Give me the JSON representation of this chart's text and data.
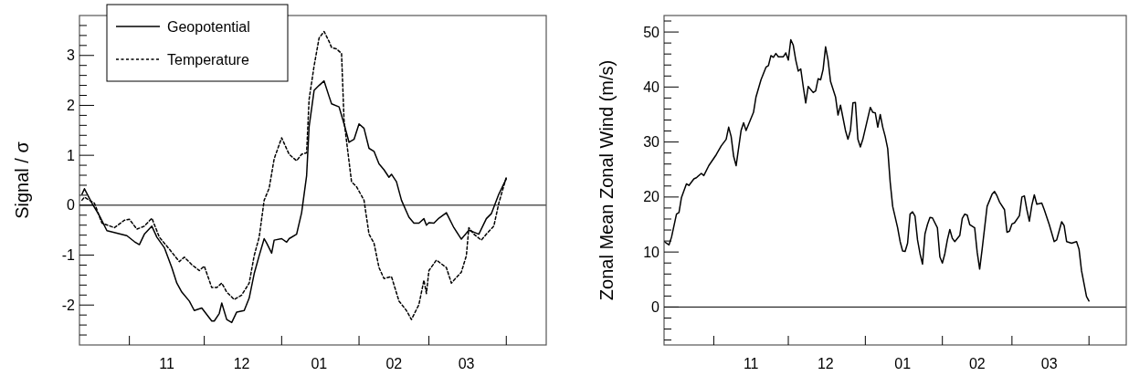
{
  "chart_data": [
    {
      "type": "line",
      "ylabel": "Signal / σ",
      "xlim": [
        "2000-10-12",
        "2001-04-17"
      ],
      "ylim": [
        -2.8,
        3.8
      ],
      "xticks": [
        {
          "value": "2000-11-01",
          "label": null
        },
        {
          "value": "2000-12-01",
          "label": null
        },
        {
          "value": "2001-01-01",
          "label": null
        },
        {
          "value": "2001-02-01",
          "label": null
        },
        {
          "value": "2001-03-01",
          "label": null
        },
        {
          "value": "2001-04-01",
          "label": null
        },
        {
          "value": "2000-11-16",
          "label": "11"
        },
        {
          "value": "2000-12-16",
          "label": "12"
        },
        {
          "value": "2001-01-16",
          "label": "01"
        },
        {
          "value": "2001-02-15",
          "label": "02"
        },
        {
          "value": "2001-03-16",
          "label": "03"
        }
      ],
      "yticks": [
        -2,
        -1,
        0,
        1,
        2,
        3,
        {
          "value": -2.6,
          "label": null
        },
        {
          "value": -2.4,
          "label": null
        },
        {
          "value": -2.2,
          "label": null
        },
        {
          "value": -1.8,
          "label": null
        },
        {
          "value": -1.6,
          "label": null
        },
        {
          "value": -1.4,
          "label": null
        },
        {
          "value": -1.2,
          "label": null
        },
        {
          "value": -0.8,
          "label": null
        },
        {
          "value": -0.6,
          "label": null
        },
        {
          "value": -0.4,
          "label": null
        },
        {
          "value": -0.2,
          "label": null
        },
        {
          "value": 0.2,
          "label": null
        },
        {
          "value": 0.4,
          "label": null
        },
        {
          "value": 0.6,
          "label": null
        },
        {
          "value": 0.8,
          "label": null
        },
        {
          "value": 1.2,
          "label": null
        },
        {
          "value": 1.4,
          "label": null
        },
        {
          "value": 1.6,
          "label": null
        },
        {
          "value": 1.8,
          "label": null
        },
        {
          "value": 2.2,
          "label": null
        },
        {
          "value": 2.4,
          "label": null
        },
        {
          "value": 2.6,
          "label": null
        },
        {
          "value": 2.8,
          "label": null
        },
        {
          "value": 3.2,
          "label": null
        },
        {
          "value": 3.4,
          "label": null
        },
        {
          "value": 3.6,
          "label": null
        }
      ],
      "grid": false,
      "legend": "top left",
      "marker": "none",
      "ref_lines": [
        {
          "axis": "y",
          "value": 0,
          "label": null,
          "color": "#000000"
        }
      ],
      "series": [
        {
          "name": "Geopotential",
          "color": "#000000",
          "line_style": "solid",
          "x": [
            "2000-10-13",
            "2000-10-14",
            "2000-10-17",
            "2000-10-20",
            "2000-10-23",
            "2000-10-27",
            "2000-10-31",
            "2000-11-03",
            "2000-11-05",
            "2000-11-07",
            "2000-11-10",
            "2000-11-12",
            "2000-11-15",
            "2000-11-18",
            "2000-11-20",
            "2000-11-22",
            "2000-11-25",
            "2000-11-27",
            "2000-11-30",
            "2000-12-04",
            "2000-12-05",
            "2000-12-07",
            "2000-12-08",
            "2000-12-10",
            "2000-12-12",
            "2000-12-14",
            "2000-12-17",
            "2000-12-19",
            "2000-12-21",
            "2000-12-23",
            "2000-12-25",
            "2000-12-26",
            "2000-12-28",
            "2000-12-29",
            "2001-01-01",
            "2001-01-03",
            "2001-01-04",
            "2001-01-07",
            "2001-01-09",
            "2001-01-11",
            "2001-01-12",
            "2001-01-14",
            "2001-01-16",
            "2001-01-18",
            "2001-01-20",
            "2001-01-21",
            "2001-01-24",
            "2001-01-26",
            "2001-01-28",
            "2001-01-30",
            "2001-02-01",
            "2001-02-03",
            "2001-02-05",
            "2001-02-07",
            "2001-02-09",
            "2001-02-11",
            "2001-02-13",
            "2001-02-14",
            "2001-02-16",
            "2001-02-18",
            "2001-02-21",
            "2001-02-23",
            "2001-02-25",
            "2001-02-27",
            "2001-02-28",
            "2001-03-01",
            "2001-03-03",
            "2001-03-05",
            "2001-03-08",
            "2001-03-11",
            "2001-03-14",
            "2001-03-17",
            "2001-03-21",
            "2001-03-24",
            "2001-03-26",
            "2001-03-29",
            "2001-04-01"
          ],
          "values": [
            0.22,
            0.33,
            0.04,
            -0.21,
            -0.51,
            -0.56,
            -0.61,
            -0.73,
            -0.79,
            -0.58,
            -0.42,
            -0.64,
            -0.85,
            -1.25,
            -1.56,
            -1.74,
            -1.92,
            -2.11,
            -2.06,
            -2.32,
            -2.32,
            -2.17,
            -1.96,
            -2.29,
            -2.35,
            -2.14,
            -2.11,
            -1.86,
            -1.37,
            -1.01,
            -0.67,
            -0.76,
            -0.96,
            -0.7,
            -0.67,
            -0.74,
            -0.67,
            -0.58,
            -0.15,
            0.59,
            1.57,
            2.3,
            2.4,
            2.49,
            2.18,
            2.03,
            1.97,
            1.63,
            1.26,
            1.32,
            1.63,
            1.54,
            1.14,
            1.08,
            0.83,
            0.71,
            0.56,
            0.62,
            0.47,
            0.1,
            -0.24,
            -0.36,
            -0.36,
            -0.27,
            -0.4,
            -0.35,
            -0.36,
            -0.26,
            -0.15,
            -0.45,
            -0.68,
            -0.5,
            -0.58,
            -0.27,
            -0.17,
            0.22,
            0.53
          ]
        },
        {
          "name": "Temperature",
          "color": "#000000",
          "line_style": "dashed",
          "x": [
            "2000-10-13",
            "2000-10-14",
            "2000-10-18",
            "2000-10-21",
            "2000-10-26",
            "2000-10-30",
            "2000-11-01",
            "2000-11-04",
            "2000-11-07",
            "2000-11-10",
            "2000-11-13",
            "2000-11-17",
            "2000-11-21",
            "2000-11-23",
            "2000-11-26",
            "2000-11-29",
            "2000-12-01",
            "2000-12-04",
            "2000-12-06",
            "2000-12-08",
            "2000-12-10",
            "2000-12-13",
            "2000-12-16",
            "2000-12-19",
            "2000-12-21",
            "2000-12-23",
            "2000-12-25",
            "2000-12-27",
            "2000-12-29",
            "2001-01-01",
            "2001-01-04",
            "2001-01-07",
            "2001-01-09",
            "2001-01-11",
            "2001-01-12",
            "2001-01-14",
            "2001-01-16",
            "2001-01-18",
            "2001-01-20",
            "2001-01-21",
            "2001-01-23",
            "2001-01-25",
            "2001-01-26",
            "2001-01-29",
            "2001-01-31",
            "2001-02-03",
            "2001-02-05",
            "2001-02-07",
            "2001-02-09",
            "2001-02-11",
            "2001-02-14",
            "2001-02-17",
            "2001-02-20",
            "2001-02-22",
            "2001-02-25",
            "2001-02-27",
            "2001-02-28",
            "2001-03-01",
            "2001-03-04",
            "2001-03-08",
            "2001-03-10",
            "2001-03-14",
            "2001-03-16",
            "2001-03-17",
            "2001-03-19",
            "2001-03-22",
            "2001-03-24",
            "2001-03-27",
            "2001-03-29",
            "2001-04-01"
          ],
          "values": [
            0.1,
            0.16,
            0.04,
            -0.36,
            -0.45,
            -0.3,
            -0.28,
            -0.48,
            -0.42,
            -0.26,
            -0.64,
            -0.88,
            -1.13,
            -1.04,
            -1.19,
            -1.31,
            -1.22,
            -1.65,
            -1.65,
            -1.56,
            -1.74,
            -1.89,
            -1.8,
            -1.56,
            -1.01,
            -0.64,
            0.1,
            0.34,
            0.93,
            1.35,
            1.02,
            0.89,
            1.02,
            1.05,
            2.12,
            2.79,
            3.35,
            3.48,
            3.28,
            3.16,
            3.13,
            3.04,
            1.69,
            0.47,
            0.37,
            0.1,
            -0.58,
            -0.76,
            -1.25,
            -1.47,
            -1.43,
            -1.92,
            -2.11,
            -2.29,
            -1.99,
            -1.5,
            -1.77,
            -1.31,
            -1.1,
            -1.25,
            -1.56,
            -1.34,
            -1.01,
            -0.45,
            -0.58,
            -0.7,
            -0.58,
            -0.42,
            0.04,
            0.56
          ]
        }
      ]
    },
    {
      "type": "line",
      "ylabel": "Zonal Mean Zonal Wind (m/s)",
      "xlim": [
        "2000-10-12",
        "2001-04-16"
      ],
      "ylim": [
        -6.9,
        53
      ],
      "xticks": [
        {
          "value": "2000-11-01",
          "label": null
        },
        {
          "value": "2000-12-01",
          "label": null
        },
        {
          "value": "2001-01-01",
          "label": null
        },
        {
          "value": "2001-02-01",
          "label": null
        },
        {
          "value": "2001-03-01",
          "label": null
        },
        {
          "value": "2001-04-01",
          "label": null
        },
        {
          "value": "2000-11-16",
          "label": "11"
        },
        {
          "value": "2000-12-16",
          "label": "12"
        },
        {
          "value": "2001-01-16",
          "label": "01"
        },
        {
          "value": "2001-02-15",
          "label": "02"
        },
        {
          "value": "2001-03-16",
          "label": "03"
        }
      ],
      "yticks": [
        0,
        10,
        20,
        30,
        40,
        50,
        {
          "value": -6,
          "label": null
        },
        {
          "value": -4,
          "label": null
        },
        {
          "value": -2,
          "label": null
        },
        {
          "value": 2,
          "label": null
        },
        {
          "value": 4,
          "label": null
        },
        {
          "value": 6,
          "label": null
        },
        {
          "value": 8,
          "label": null
        },
        {
          "value": 12,
          "label": null
        },
        {
          "value": 14,
          "label": null
        },
        {
          "value": 16,
          "label": null
        },
        {
          "value": 18,
          "label": null
        },
        {
          "value": 22,
          "label": null
        },
        {
          "value": 24,
          "label": null
        },
        {
          "value": 26,
          "label": null
        },
        {
          "value": 28,
          "label": null
        },
        {
          "value": 32,
          "label": null
        },
        {
          "value": 34,
          "label": null
        },
        {
          "value": 36,
          "label": null
        },
        {
          "value": 38,
          "label": null
        },
        {
          "value": 42,
          "label": null
        },
        {
          "value": 44,
          "label": null
        },
        {
          "value": 46,
          "label": null
        },
        {
          "value": 48,
          "label": null
        },
        {
          "value": 52,
          "label": null
        }
      ],
      "grid": false,
      "marker": "none",
      "ref_lines": [
        {
          "axis": "y",
          "value": 0,
          "label": null,
          "color": "#000000"
        }
      ],
      "series": [
        {
          "color": "#000000",
          "line_style": "solid",
          "x": [
            "2000-10-12",
            "2000-10-14",
            "2000-10-15",
            "2000-10-17",
            "2000-10-18",
            "2000-10-19",
            "2000-10-21",
            "2000-10-22",
            "2000-10-24",
            "2000-10-25",
            "2000-10-27",
            "2000-10-28",
            "2000-10-30",
            "2000-11-02",
            "2000-11-04",
            "2000-11-06",
            "2000-11-07",
            "2000-11-08",
            "2000-11-09",
            "2000-11-10",
            "2000-11-12",
            "2000-11-13",
            "2000-11-14",
            "2000-11-17",
            "2000-11-18",
            "2000-11-20",
            "2000-11-22",
            "2000-11-23",
            "2000-11-24",
            "2000-11-25",
            "2000-11-26",
            "2000-11-27",
            "2000-11-29",
            "2000-11-30",
            "2000-12-01",
            "2000-12-02",
            "2000-12-03",
            "2000-12-04",
            "2000-12-05",
            "2000-12-06",
            "2000-12-07",
            "2000-12-08",
            "2000-12-09",
            "2000-12-11",
            "2000-12-12",
            "2000-12-13",
            "2000-12-14",
            "2000-12-15",
            "2000-12-16",
            "2000-12-17",
            "2000-12-18",
            "2000-12-20",
            "2000-12-21",
            "2000-12-22",
            "2000-12-24",
            "2000-12-25",
            "2000-12-26",
            "2000-12-27",
            "2000-12-28",
            "2000-12-29",
            "2000-12-30",
            "2000-12-31",
            "2001-01-03",
            "2001-01-04",
            "2001-01-05",
            "2001-01-06",
            "2001-01-07",
            "2001-01-08",
            "2001-01-09",
            "2001-01-10",
            "2001-01-11",
            "2001-01-12",
            "2001-01-14",
            "2001-01-15",
            "2001-01-16",
            "2001-01-17",
            "2001-01-18",
            "2001-01-19",
            "2001-01-20",
            "2001-01-21",
            "2001-01-22",
            "2001-01-23",
            "2001-01-24",
            "2001-01-25",
            "2001-01-26",
            "2001-01-27",
            "2001-01-28",
            "2001-01-30",
            "2001-01-31",
            "2001-02-01",
            "2001-02-02",
            "2001-02-03",
            "2001-02-04",
            "2001-02-05",
            "2001-02-06",
            "2001-02-08",
            "2001-02-09",
            "2001-02-10",
            "2001-02-11",
            "2001-02-12",
            "2001-02-13",
            "2001-02-14",
            "2001-02-15",
            "2001-02-16",
            "2001-02-17",
            "2001-02-18",
            "2001-02-19",
            "2001-02-21",
            "2001-02-22",
            "2001-02-23",
            "2001-02-24",
            "2001-02-26",
            "2001-02-27",
            "2001-02-28",
            "2001-03-01",
            "2001-03-02",
            "2001-03-04",
            "2001-03-05",
            "2001-03-06",
            "2001-03-07",
            "2001-03-08",
            "2001-03-09",
            "2001-03-10",
            "2001-03-11",
            "2001-03-13",
            "2001-03-14",
            "2001-03-16",
            "2001-03-18",
            "2001-03-19",
            "2001-03-21",
            "2001-03-22",
            "2001-03-23",
            "2001-03-25",
            "2001-03-27",
            "2001-03-28",
            "2001-03-29",
            "2001-03-31",
            "2001-04-01"
          ],
          "values": [
            11.9,
            11.3,
            12.7,
            16.9,
            17.2,
            19.9,
            22.4,
            22.1,
            23.3,
            23.5,
            24.3,
            23.9,
            25.7,
            27.7,
            29.3,
            30.5,
            32.7,
            31.0,
            27.4,
            25.7,
            32.1,
            33.5,
            32.1,
            35.4,
            38.2,
            41.3,
            43.6,
            43.9,
            45.7,
            45.4,
            46.1,
            45.5,
            45.5,
            46.2,
            44.9,
            48.6,
            47.6,
            44.9,
            42.9,
            43.3,
            40.1,
            37.1,
            40.1,
            39.0,
            39.3,
            41.5,
            41.3,
            43.2,
            47.3,
            44.9,
            41.0,
            38.2,
            34.9,
            36.7,
            32.1,
            30.5,
            32.1,
            37.1,
            37.2,
            30.5,
            29.1,
            30.5,
            36.3,
            35.4,
            35.3,
            32.7,
            35.0,
            32.7,
            31.0,
            28.8,
            22.7,
            18.3,
            14.4,
            11.9,
            10.2,
            10.1,
            11.6,
            16.9,
            17.3,
            16.5,
            12.2,
            9.7,
            7.8,
            13.3,
            15.0,
            16.3,
            16.2,
            14.4,
            9.1,
            8.0,
            9.7,
            12.2,
            14.1,
            12.5,
            11.9,
            13.0,
            16.1,
            16.9,
            16.7,
            15.0,
            14.7,
            14.4,
            10.0,
            6.9,
            10.5,
            14.4,
            18.3,
            20.5,
            21.0,
            20.2,
            19.1,
            17.7,
            13.6,
            13.8,
            15.1,
            15.3,
            16.6,
            20.0,
            20.2,
            17.7,
            15.6,
            18.5,
            20.4,
            18.7,
            18.9,
            17.7,
            15.0,
            11.9,
            12.2,
            15.5,
            14.8,
            11.9,
            11.6,
            11.9,
            10.5,
            6.6,
            1.9,
            1.1
          ]
        }
      ]
    }
  ]
}
